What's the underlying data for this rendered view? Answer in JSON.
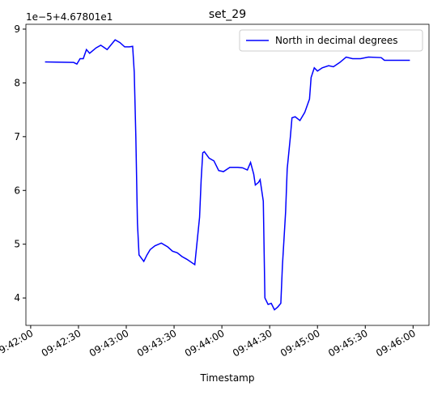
{
  "chart_data": {
    "type": "line",
    "title": "set_29",
    "xlabel": "Timestamp",
    "y_offset_text": "1e−5+4.67801e1",
    "legend": "upper right",
    "grid": false,
    "x": [
      "09:42:09",
      "09:42:27",
      "09:42:29",
      "09:42:31",
      "09:42:33",
      "09:42:35",
      "09:42:37",
      "09:42:41",
      "09:42:44",
      "09:42:48",
      "09:42:53",
      "09:42:56",
      "09:42:59",
      "09:43:02",
      "09:43:04",
      "09:43:05",
      "09:43:06",
      "09:43:07",
      "09:43:08",
      "09:43:10",
      "09:43:11",
      "09:43:13",
      "09:43:15",
      "09:43:18",
      "09:43:22",
      "09:43:26",
      "09:43:29",
      "09:43:32",
      "09:43:35",
      "09:43:38",
      "09:43:43",
      "09:43:46",
      "09:43:47",
      "09:43:48",
      "09:43:49",
      "09:43:52",
      "09:43:55",
      "09:43:58",
      "09:44:01",
      "09:44:05",
      "09:44:10",
      "09:44:13",
      "09:44:16",
      "09:44:18",
      "09:44:20",
      "09:44:21",
      "09:44:23",
      "09:44:24",
      "09:44:26",
      "09:44:27",
      "09:44:29",
      "09:44:31",
      "09:44:33",
      "09:44:35",
      "09:44:37",
      "09:44:38",
      "09:44:40",
      "09:44:41",
      "09:44:43",
      "09:44:44",
      "09:44:46",
      "09:44:49",
      "09:44:52",
      "09:44:55",
      "09:44:56",
      "09:44:58",
      "09:45:00",
      "09:45:03",
      "09:45:07",
      "09:45:10",
      "09:45:14",
      "09:45:18",
      "09:45:22",
      "09:45:27",
      "09:45:32",
      "09:45:40",
      "09:45:42",
      "09:45:50",
      "09:45:58"
    ],
    "series": [
      {
        "name": "North in decimal degrees",
        "color": "#0000ff",
        "values": [
          8.39,
          8.38,
          8.35,
          8.45,
          8.45,
          8.62,
          8.55,
          8.65,
          8.7,
          8.62,
          8.8,
          8.75,
          8.67,
          8.67,
          8.68,
          8.2,
          7.0,
          5.4,
          4.8,
          4.72,
          4.68,
          4.8,
          4.9,
          4.97,
          5.02,
          4.95,
          4.87,
          4.84,
          4.77,
          4.72,
          4.62,
          5.5,
          6.2,
          6.7,
          6.72,
          6.6,
          6.55,
          6.37,
          6.35,
          6.43,
          6.43,
          6.42,
          6.38,
          6.52,
          6.3,
          6.1,
          6.15,
          6.2,
          5.8,
          4.0,
          3.88,
          3.9,
          3.78,
          3.83,
          3.9,
          4.6,
          5.6,
          6.4,
          7.0,
          7.35,
          7.37,
          7.3,
          7.45,
          7.7,
          8.1,
          8.28,
          8.22,
          8.28,
          8.32,
          8.3,
          8.38,
          8.48,
          8.45,
          8.45,
          8.48,
          8.47,
          8.42,
          8.42,
          8.42
        ]
      }
    ],
    "xlim": [
      "09:41:57",
      "09:46:10"
    ],
    "xticks": [
      "09:42:00",
      "09:42:30",
      "09:43:00",
      "09:43:30",
      "09:44:00",
      "09:44:30",
      "09:45:00",
      "09:45:30",
      "09:46:00"
    ],
    "ylim": [
      3.49,
      9.09
    ],
    "yticks": [
      4,
      5,
      6,
      7,
      8,
      9
    ]
  }
}
